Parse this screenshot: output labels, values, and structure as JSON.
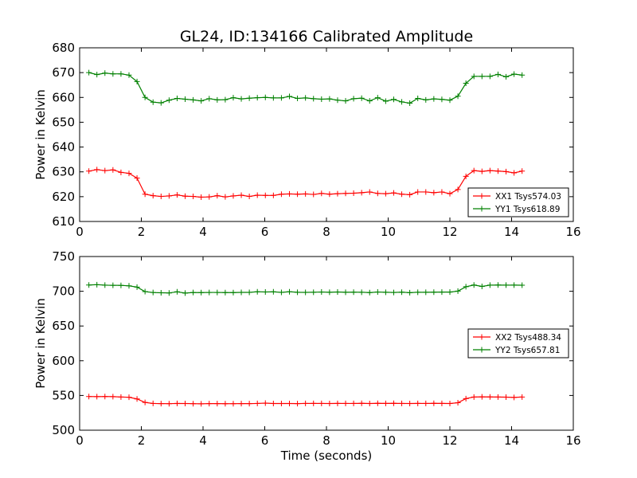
{
  "chart_data": [
    {
      "type": "line",
      "title": "GL24, ID:134166 Calibrated Amplitude",
      "xlabel": "",
      "ylabel": "Power in Kelvin",
      "xlim": [
        0,
        16
      ],
      "ylim": [
        610,
        680
      ],
      "xticks": [
        "0",
        "2",
        "4",
        "6",
        "8",
        "10",
        "12",
        "14",
        "16"
      ],
      "yticks": [
        "610",
        "620",
        "630",
        "640",
        "650",
        "660",
        "670",
        "680"
      ],
      "legend_position": "lower-right",
      "x": [
        0.3,
        0.56,
        0.82,
        1.08,
        1.34,
        1.6,
        1.86,
        2.12,
        2.38,
        2.64,
        2.9,
        3.16,
        3.42,
        3.68,
        3.94,
        4.2,
        4.46,
        4.72,
        4.98,
        5.24,
        5.5,
        5.76,
        6.02,
        6.28,
        6.54,
        6.8,
        7.06,
        7.32,
        7.58,
        7.84,
        8.1,
        8.36,
        8.62,
        8.88,
        9.14,
        9.4,
        9.66,
        9.92,
        10.18,
        10.44,
        10.7,
        10.96,
        11.22,
        11.48,
        11.74,
        12.0,
        12.26,
        12.52,
        12.78,
        13.04,
        13.3,
        13.56,
        13.82,
        14.08,
        14.34
      ],
      "series": [
        {
          "name": "XX1 Tsys574.03",
          "color": "#ff0000",
          "values": [
            630.3,
            630.9,
            630.5,
            630.8,
            629.8,
            629.4,
            627.5,
            621.0,
            620.4,
            620.1,
            620.3,
            620.7,
            620.2,
            620.1,
            619.8,
            619.9,
            620.4,
            619.9,
            620.3,
            620.6,
            620.1,
            620.6,
            620.5,
            620.5,
            621.0,
            621.1,
            621.0,
            621.1,
            620.9,
            621.3,
            621.0,
            621.2,
            621.3,
            621.4,
            621.6,
            621.9,
            621.3,
            621.2,
            621.5,
            621.0,
            620.8,
            621.9,
            621.9,
            621.6,
            621.9,
            621.2,
            622.9,
            628.2,
            630.5,
            630.2,
            630.5,
            630.3,
            630.1,
            629.6,
            630.3
          ]
        },
        {
          "name": "YY1 Tsys618.89",
          "color": "#008000",
          "values": [
            670.0,
            669.2,
            669.8,
            669.5,
            669.5,
            669.0,
            666.4,
            660.0,
            658.1,
            657.8,
            658.9,
            659.6,
            659.3,
            659.0,
            658.6,
            659.5,
            659.0,
            659.1,
            659.9,
            659.4,
            659.7,
            659.9,
            660.0,
            659.8,
            659.8,
            660.4,
            659.6,
            659.8,
            659.5,
            659.3,
            659.4,
            658.9,
            658.6,
            659.5,
            659.7,
            658.6,
            659.9,
            658.5,
            659.2,
            658.2,
            657.7,
            659.6,
            659.0,
            659.4,
            659.2,
            658.9,
            660.5,
            665.7,
            668.5,
            668.5,
            668.5,
            669.3,
            668.3,
            669.4,
            669.0
          ]
        }
      ]
    },
    {
      "type": "line",
      "title": "",
      "xlabel": "Time (seconds)",
      "ylabel": "Power in Kelvin",
      "xlim": [
        0,
        16
      ],
      "ylim": [
        500,
        750
      ],
      "xticks": [
        "0",
        "2",
        "4",
        "6",
        "8",
        "10",
        "12",
        "14",
        "16"
      ],
      "yticks": [
        "500",
        "550",
        "600",
        "650",
        "700",
        "750"
      ],
      "legend_position": "right",
      "x": [
        0.3,
        0.56,
        0.82,
        1.08,
        1.34,
        1.6,
        1.86,
        2.12,
        2.38,
        2.64,
        2.9,
        3.16,
        3.42,
        3.68,
        3.94,
        4.2,
        4.46,
        4.72,
        4.98,
        5.24,
        5.5,
        5.76,
        6.02,
        6.28,
        6.54,
        6.8,
        7.06,
        7.32,
        7.58,
        7.84,
        8.1,
        8.36,
        8.62,
        8.88,
        9.14,
        9.4,
        9.66,
        9.92,
        10.18,
        10.44,
        10.7,
        10.96,
        11.22,
        11.48,
        11.74,
        12.0,
        12.26,
        12.52,
        12.78,
        13.04,
        13.3,
        13.56,
        13.82,
        14.08,
        14.34
      ],
      "series": [
        {
          "name": "XX2 Tsys488.34",
          "color": "#ff0000",
          "values": [
            548.5,
            548.3,
            548.5,
            548.3,
            547.8,
            547.4,
            545.0,
            540.0,
            538.5,
            538.3,
            538.2,
            538.5,
            538.4,
            538.2,
            538.0,
            538.3,
            538.3,
            538.1,
            538.2,
            538.3,
            538.3,
            538.5,
            539.0,
            538.4,
            538.4,
            538.4,
            538.3,
            538.5,
            538.6,
            538.5,
            538.4,
            538.6,
            538.5,
            538.5,
            538.7,
            538.4,
            538.7,
            538.6,
            538.7,
            538.5,
            538.4,
            538.6,
            538.5,
            538.7,
            538.6,
            538.4,
            539.5,
            545.5,
            547.8,
            548.0,
            547.9,
            547.7,
            547.6,
            547.2,
            547.8
          ]
        },
        {
          "name": "YY2 Tsys657.81",
          "color": "#008000",
          "values": [
            709.0,
            709.5,
            708.8,
            708.6,
            708.5,
            707.8,
            706.0,
            699.5,
            698.2,
            697.8,
            697.6,
            699.2,
            697.4,
            698.2,
            698.1,
            698.3,
            698.3,
            698.1,
            698.1,
            698.4,
            698.4,
            699.3,
            699.0,
            699.2,
            698.4,
            699.3,
            698.5,
            698.4,
            698.6,
            698.9,
            698.5,
            699.0,
            698.5,
            698.7,
            698.6,
            698.1,
            698.9,
            698.5,
            698.3,
            698.7,
            698.0,
            698.6,
            698.5,
            698.7,
            698.8,
            698.8,
            700.2,
            706.5,
            709.0,
            707.0,
            708.8,
            709.0,
            708.8,
            708.9,
            708.7
          ]
        }
      ]
    }
  ]
}
